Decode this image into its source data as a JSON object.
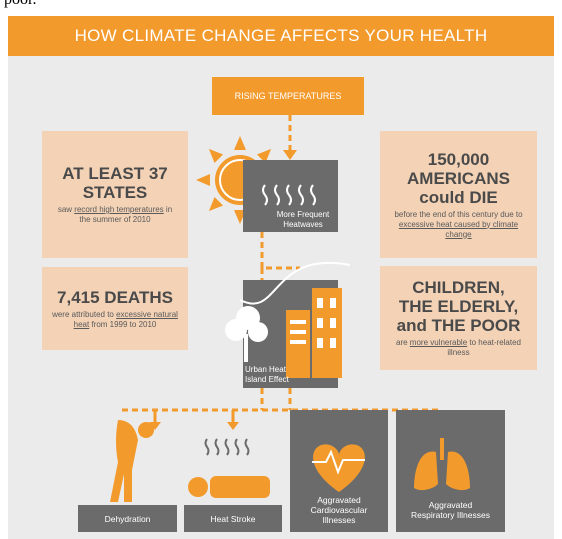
{
  "header": {
    "cut_text": "poor.",
    "title": "HOW CLIMATE CHANGE AFFECTS YOUR HEALTH"
  },
  "nodes": {
    "rising": "RISING TEMPERATURES",
    "heatwaves": "More Frequent Heatwaves",
    "urban": "Urban Heat Island Effect"
  },
  "stats": [
    {
      "headline": [
        "AT LEAST 37",
        "STATES"
      ],
      "parts": [
        {
          "text": "saw"
        },
        {
          "text": "record high temperatures",
          "underline": true
        },
        {
          "text": "in the summer of 2010"
        }
      ]
    },
    {
      "headline": [
        "7,415 DEATHS"
      ],
      "parts": [
        {
          "text": "were attributed to"
        },
        {
          "text": "excessive natural heat",
          "underline": true
        },
        {
          "text": "from 1999 to 2010"
        }
      ]
    },
    {
      "headline": [
        "150,000",
        "AMERICANS",
        "could DIE"
      ],
      "parts": [
        {
          "text": "before the end of this century due to"
        },
        {
          "text": "excessive heat caused by climate change",
          "underline": true
        }
      ]
    },
    {
      "headline": [
        "CHILDREN,",
        "THE ELDERLY,",
        "and THE POOR"
      ],
      "parts": [
        {
          "text": "are"
        },
        {
          "text": "more vulnerable",
          "underline": true
        },
        {
          "text": "to heat-related illness"
        }
      ]
    }
  ],
  "effects": [
    "Dehydration",
    "Heat Stroke",
    "Aggravated Cardiovascular Illnesses",
    "Aggravated Respiratory Illnesses"
  ]
}
